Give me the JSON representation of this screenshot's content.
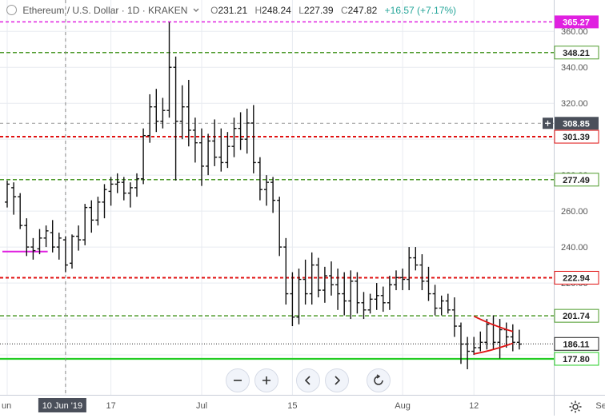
{
  "legend": {
    "symbol": "Ethereum / U.S. Dollar · 1D · KRAKEN",
    "open_label": "O",
    "open": "231.21",
    "high_label": "H",
    "high": "248.24",
    "low_label": "L",
    "low": "227.39",
    "close_label": "C",
    "close": "247.82",
    "change": "+16.57 (+7.17%)"
  },
  "toolbar": {
    "zoom_out": "−",
    "zoom_in": "+",
    "scroll_left": "‹",
    "scroll_right": "›",
    "reset": "↻"
  },
  "colors": {
    "magenta": "#e020e0",
    "green_dash": "#4c9a2a",
    "red_dash": "#e01010",
    "support": "#22cc22",
    "candle": "#111111",
    "grid": "#e8ebf0",
    "crosshair": "#666666",
    "wedge": "#e01515"
  },
  "chart_data": {
    "type": "ohlc",
    "title": "",
    "ylim": [
      160,
      365
    ],
    "y_ticks": [
      {
        "value": 360,
        "label": "360.00"
      },
      {
        "value": 340,
        "label": "340.00"
      },
      {
        "value": 320,
        "label": "320.00"
      },
      {
        "value": 300,
        "label": "300.00"
      },
      {
        "value": 280,
        "label": "280.00"
      },
      {
        "value": 260,
        "label": "260.00"
      },
      {
        "value": 240,
        "label": "240.00"
      },
      {
        "value": 220,
        "label": "220.00"
      },
      {
        "value": 200,
        "label": "200.00"
      },
      {
        "value": 180,
        "label": "180.00"
      }
    ],
    "x_ticks": [
      {
        "label": "un",
        "index": 0
      },
      {
        "label": "10 Jun '19",
        "index": 9,
        "highlight": true
      },
      {
        "label": "17",
        "index": 16
      },
      {
        "label": "Jul",
        "index": 30
      },
      {
        "label": "15",
        "index": 44
      },
      {
        "label": "Aug",
        "index": 61
      },
      {
        "label": "12",
        "index": 72
      },
      {
        "label": "Sep",
        "index": 92
      }
    ],
    "levels": [
      {
        "value": 365.27,
        "label": "365.27",
        "style": "magenta"
      },
      {
        "value": 348.21,
        "label": "348.21",
        "style": "green_dash"
      },
      {
        "value": 308.85,
        "label": "308.85",
        "style": "crosshair"
      },
      {
        "value": 301.39,
        "label": "301.39",
        "style": "red_dash"
      },
      {
        "value": 277.49,
        "label": "277.49",
        "style": "green_dash"
      },
      {
        "value": 222.94,
        "label": "222.94",
        "style": "red_dash"
      },
      {
        "value": 201.74,
        "label": "201.74",
        "style": "green_dash"
      },
      {
        "value": 186.11,
        "label": "186.11",
        "style": "last"
      },
      {
        "value": 177.8,
        "label": "177.80",
        "style": "support"
      }
    ],
    "hline_segment": {
      "value": 237.5,
      "from_index": 0,
      "to_index": 6
    },
    "crosshair_index": 9,
    "bars": [
      [
        265,
        277,
        262,
        275
      ],
      [
        273,
        276,
        258,
        268
      ],
      [
        268,
        270,
        250,
        252
      ],
      [
        252,
        256,
        235,
        240
      ],
      [
        240,
        245,
        233,
        238
      ],
      [
        239,
        250,
        236,
        245
      ],
      [
        245,
        252,
        240,
        249
      ],
      [
        248,
        255,
        237,
        240
      ],
      [
        240,
        248,
        233,
        245
      ],
      [
        244,
        246,
        226,
        230
      ],
      [
        231,
        247,
        228,
        246
      ],
      [
        246,
        252,
        238,
        244
      ],
      [
        244,
        264,
        241,
        262
      ],
      [
        262,
        266,
        248,
        255
      ],
      [
        255,
        268,
        252,
        265
      ],
      [
        265,
        275,
        256,
        272
      ],
      [
        271,
        279,
        263,
        275
      ],
      [
        275,
        281,
        270,
        276
      ],
      [
        276,
        279,
        266,
        270
      ],
      [
        270,
        276,
        262,
        273
      ],
      [
        273,
        281,
        268,
        278
      ],
      [
        278,
        306,
        275,
        302
      ],
      [
        302,
        325,
        298,
        318
      ],
      [
        318,
        328,
        304,
        310
      ],
      [
        310,
        323,
        306,
        316
      ],
      [
        316,
        365,
        312,
        340
      ],
      [
        340,
        346,
        277,
        310
      ],
      [
        310,
        330,
        300,
        318
      ],
      [
        318,
        333,
        296,
        305
      ],
      [
        305,
        312,
        287,
        298
      ],
      [
        298,
        306,
        274,
        285
      ],
      [
        285,
        303,
        280,
        299
      ],
      [
        299,
        311,
        285,
        290
      ],
      [
        290,
        306,
        282,
        287
      ],
      [
        287,
        304,
        284,
        296
      ],
      [
        296,
        312,
        290,
        306
      ],
      [
        306,
        315,
        294,
        300
      ],
      [
        300,
        317,
        292,
        309
      ],
      [
        309,
        319,
        281,
        287
      ],
      [
        287,
        290,
        266,
        272
      ],
      [
        272,
        280,
        263,
        276
      ],
      [
        276,
        279,
        259,
        266
      ],
      [
        266,
        268,
        235,
        240
      ],
      [
        240,
        245,
        208,
        214
      ],
      [
        214,
        226,
        196,
        201
      ],
      [
        201,
        228,
        197,
        222
      ],
      [
        222,
        233,
        208,
        214
      ],
      [
        214,
        237,
        208,
        230
      ],
      [
        230,
        234,
        212,
        216
      ],
      [
        216,
        229,
        209,
        224
      ],
      [
        224,
        232,
        213,
        219
      ],
      [
        219,
        228,
        205,
        214
      ],
      [
        214,
        226,
        202,
        210
      ],
      [
        210,
        227,
        200,
        221
      ],
      [
        221,
        226,
        203,
        209
      ],
      [
        209,
        215,
        200,
        205
      ],
      [
        205,
        214,
        203,
        211
      ],
      [
        211,
        220,
        205,
        213
      ],
      [
        213,
        218,
        204,
        209
      ],
      [
        209,
        224,
        205,
        219
      ],
      [
        219,
        227,
        216,
        223
      ],
      [
        223,
        228,
        216,
        222
      ],
      [
        222,
        240,
        216,
        234
      ],
      [
        234,
        240,
        227,
        230
      ],
      [
        230,
        236,
        216,
        221
      ],
      [
        221,
        229,
        210,
        214
      ],
      [
        214,
        219,
        202,
        206
      ],
      [
        206,
        213,
        202,
        210
      ],
      [
        210,
        214,
        203,
        205
      ],
      [
        205,
        212,
        190,
        196
      ],
      [
        196,
        198,
        175,
        186
      ],
      [
        186,
        190,
        172,
        182
      ],
      [
        182,
        190,
        180,
        184
      ],
      [
        184,
        193,
        182,
        187
      ],
      [
        187,
        200,
        183,
        197
      ],
      [
        197,
        202,
        183,
        187
      ],
      [
        187,
        200,
        178,
        194
      ],
      [
        194,
        198,
        184,
        190
      ],
      [
        190,
        197,
        182,
        187
      ],
      [
        187,
        194,
        183,
        186
      ]
    ],
    "wedge": {
      "upper": [
        [
          72,
          201.5
        ],
        [
          78,
          193
        ]
      ],
      "lower": [
        [
          72,
          180.5
        ],
        [
          78,
          186.5
        ]
      ]
    }
  }
}
